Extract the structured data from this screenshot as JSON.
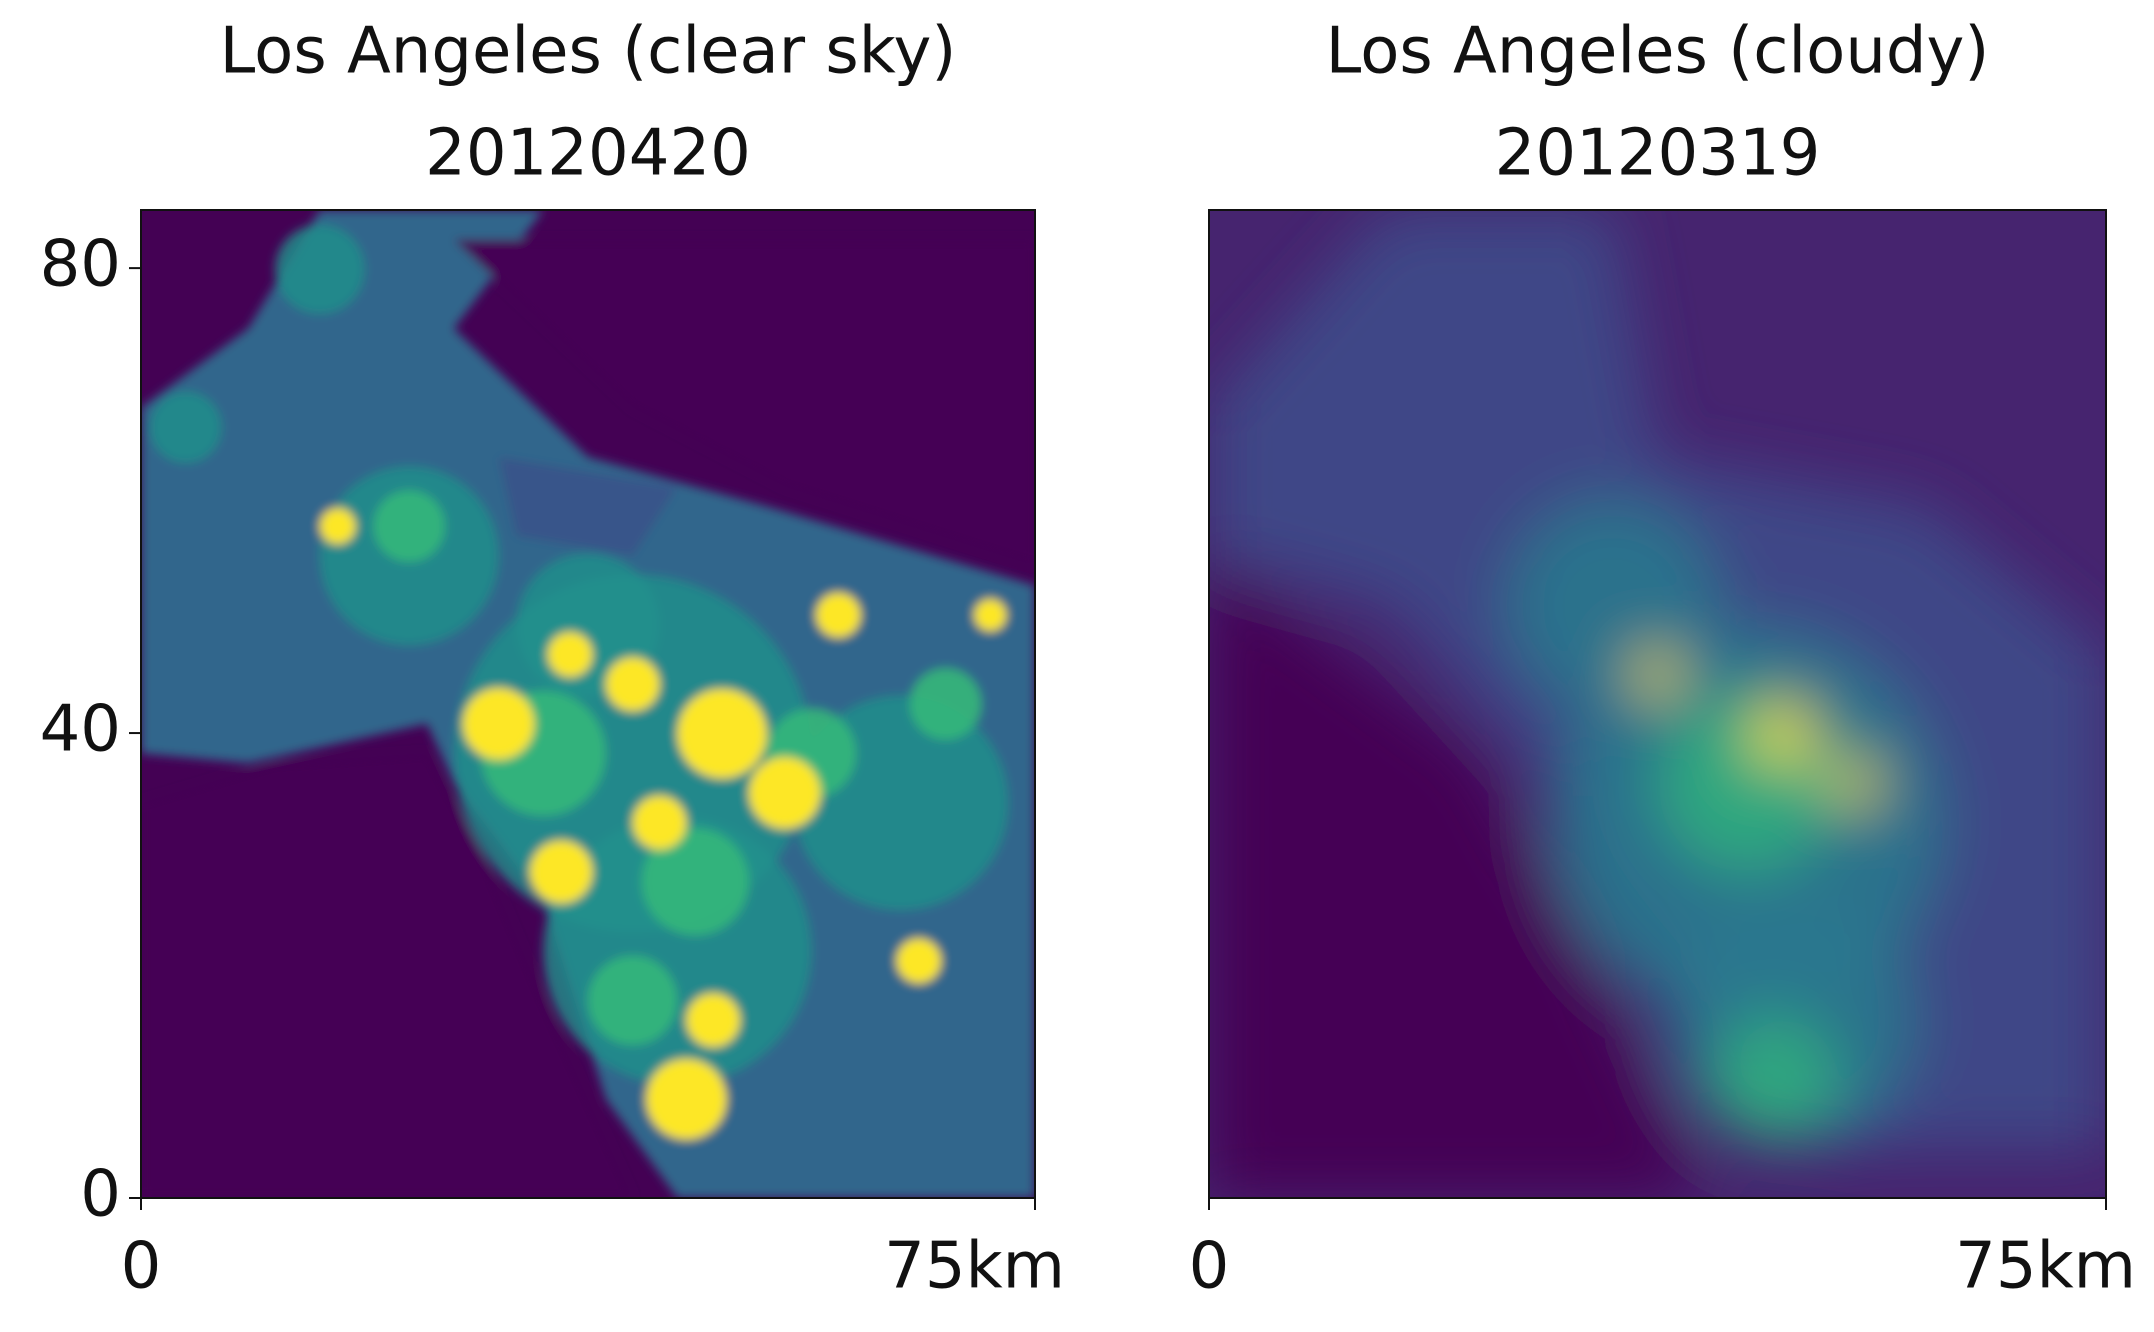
{
  "chart_data": [
    {
      "type": "image",
      "title": "Los Angeles (clear sky)",
      "subtitle": "20120420",
      "xlim": [
        0,
        75
      ],
      "xticks": [
        0,
        {
          "value": 75,
          "label": "75km"
        }
      ],
      "ylim": [
        0,
        85
      ],
      "yticks": [
        0,
        40,
        80
      ]
    },
    {
      "type": "image",
      "title": "Los Angeles (cloudy)",
      "subtitle": "20120319",
      "xlim": [
        0,
        75
      ],
      "xticks": [
        0,
        {
          "value": 75,
          "label": "75km"
        }
      ]
    }
  ]
}
